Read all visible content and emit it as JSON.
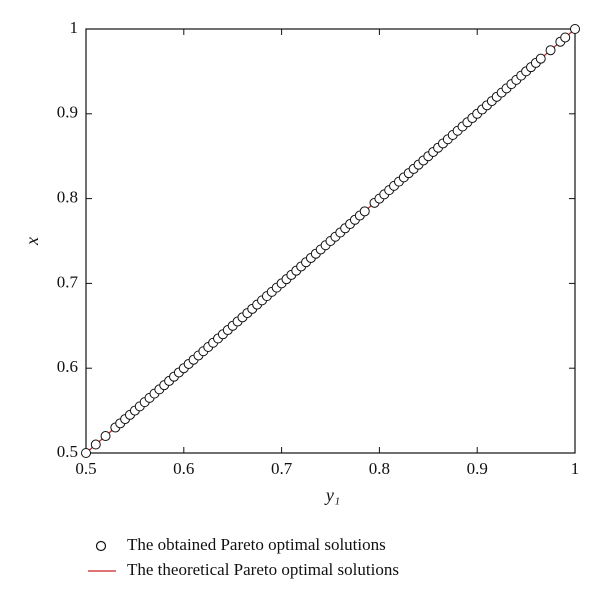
{
  "chart_data": {
    "type": "scatter",
    "x_label": "y₁",
    "y_label": "x",
    "xlim": [
      0.5,
      1
    ],
    "ylim": [
      0.5,
      1
    ],
    "xticks": [
      0.5,
      0.6,
      0.7,
      0.8,
      0.9,
      1
    ],
    "yticks": [
      0.5,
      0.6,
      0.7,
      0.8,
      0.9,
      1
    ],
    "series": [
      {
        "name": "The obtained Pareto optimal solutions",
        "color": "#111111",
        "style": "marker",
        "x": [
          0.5,
          0.51,
          0.52,
          0.53,
          0.535,
          0.54,
          0.545,
          0.55,
          0.555,
          0.56,
          0.565,
          0.57,
          0.575,
          0.58,
          0.585,
          0.59,
          0.595,
          0.6,
          0.605,
          0.61,
          0.615,
          0.62,
          0.625,
          0.63,
          0.635,
          0.64,
          0.645,
          0.65,
          0.655,
          0.66,
          0.665,
          0.67,
          0.675,
          0.68,
          0.685,
          0.69,
          0.695,
          0.7,
          0.705,
          0.71,
          0.715,
          0.72,
          0.725,
          0.73,
          0.735,
          0.74,
          0.745,
          0.75,
          0.755,
          0.76,
          0.765,
          0.77,
          0.775,
          0.78,
          0.785,
          0.795,
          0.8,
          0.805,
          0.81,
          0.815,
          0.82,
          0.825,
          0.83,
          0.835,
          0.84,
          0.845,
          0.85,
          0.855,
          0.86,
          0.865,
          0.87,
          0.875,
          0.88,
          0.885,
          0.89,
          0.895,
          0.9,
          0.905,
          0.91,
          0.915,
          0.92,
          0.925,
          0.93,
          0.935,
          0.94,
          0.945,
          0.95,
          0.955,
          0.96,
          0.965,
          0.975,
          0.985,
          0.99,
          1
        ],
        "values": [
          0.5,
          0.51,
          0.52,
          0.53,
          0.535,
          0.54,
          0.545,
          0.55,
          0.555,
          0.56,
          0.565,
          0.57,
          0.575,
          0.58,
          0.585,
          0.59,
          0.595,
          0.6,
          0.605,
          0.61,
          0.615,
          0.62,
          0.625,
          0.63,
          0.635,
          0.64,
          0.645,
          0.65,
          0.655,
          0.66,
          0.665,
          0.67,
          0.675,
          0.68,
          0.685,
          0.69,
          0.695,
          0.7,
          0.705,
          0.71,
          0.715,
          0.72,
          0.725,
          0.73,
          0.735,
          0.74,
          0.745,
          0.75,
          0.755,
          0.76,
          0.765,
          0.77,
          0.775,
          0.78,
          0.785,
          0.795,
          0.8,
          0.805,
          0.81,
          0.815,
          0.82,
          0.825,
          0.83,
          0.835,
          0.84,
          0.845,
          0.85,
          0.855,
          0.86,
          0.865,
          0.87,
          0.875,
          0.88,
          0.885,
          0.89,
          0.895,
          0.9,
          0.905,
          0.91,
          0.915,
          0.92,
          0.925,
          0.93,
          0.935,
          0.94,
          0.945,
          0.95,
          0.955,
          0.96,
          0.965,
          0.975,
          0.985,
          0.99,
          1
        ]
      },
      {
        "name": "The theoretical Pareto optimal solutions",
        "color": "#cc2222",
        "style": "line",
        "x": [
          0.5,
          1
        ],
        "values": [
          0.5,
          1
        ]
      }
    ]
  }
}
